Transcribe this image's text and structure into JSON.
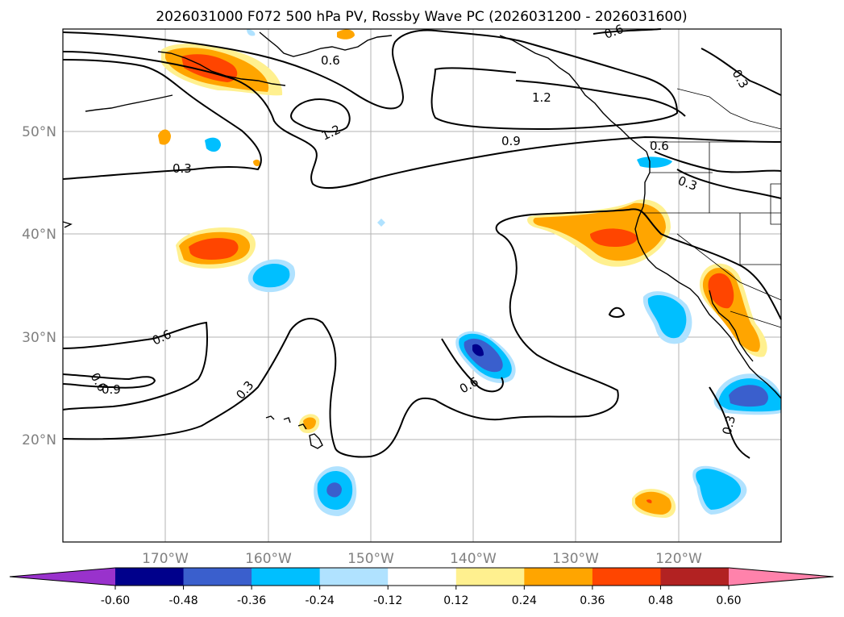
{
  "title": "2026031000 F072 500 hPa PV, Rossby Wave PC (2026031200 - 2026031600)",
  "map": {
    "lon_range": [
      -180,
      -110
    ],
    "lat_range": [
      10,
      60
    ],
    "lon_ticks": [
      {
        "value": -170,
        "label": "170°W"
      },
      {
        "value": -160,
        "label": "160°W"
      },
      {
        "value": -150,
        "label": "150°W"
      },
      {
        "value": -140,
        "label": "140°W"
      },
      {
        "value": -130,
        "label": "130°W"
      },
      {
        "value": -120,
        "label": "120°W"
      }
    ],
    "lat_ticks": [
      {
        "value": 20,
        "label": "20°N"
      },
      {
        "value": 30,
        "label": "30°N"
      },
      {
        "value": 40,
        "label": "40°N"
      },
      {
        "value": 50,
        "label": "50°N"
      }
    ],
    "contour_labels": [
      "0.6",
      "0.6",
      "1.2",
      "1.2",
      "0.9",
      "0.6",
      "0.3",
      "0.3",
      "0.3",
      "0.6",
      "0.6",
      "0.9",
      "0.3",
      "0.6",
      "0.3"
    ]
  },
  "colorbar": {
    "ticks": [
      "-0.60",
      "-0.48",
      "-0.36",
      "-0.24",
      "-0.12",
      "0.12",
      "0.24",
      "0.36",
      "0.48",
      "0.60"
    ],
    "colors": {
      "under": "#9932cc",
      "bins": [
        "#00008b",
        "#3a5fcd",
        "#00bfff",
        "#b0e2ff",
        "#ffffff",
        "#fff08f",
        "#ffa500",
        "#ff4500",
        "#b22222"
      ],
      "over": "#ff82ab"
    }
  }
}
